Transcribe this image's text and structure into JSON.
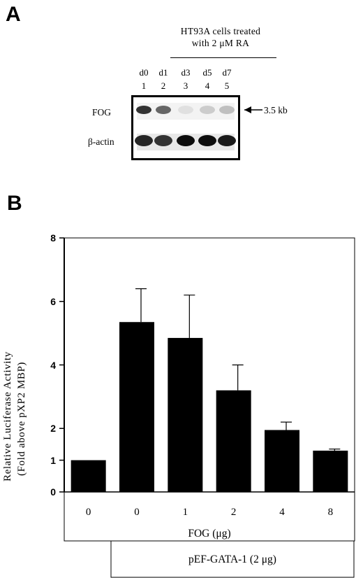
{
  "panel_a": {
    "letter": "A",
    "caption_line1": "HT93A cells treated",
    "caption_line2": "with 2 μM RA",
    "lanes": [
      {
        "day": "d0",
        "number": "1"
      },
      {
        "day": "d1",
        "number": "2"
      },
      {
        "day": "d3",
        "number": "3"
      },
      {
        "day": "d5",
        "number": "4"
      },
      {
        "day": "d7",
        "number": "5"
      }
    ],
    "rows": [
      {
        "label": "FOG",
        "band_intensity": [
          0.8,
          0.6,
          0.12,
          0.2,
          0.25
        ]
      },
      {
        "label": "β-actin",
        "band_intensity": [
          0.85,
          0.8,
          0.95,
          0.95,
          0.9
        ]
      }
    ],
    "size_marker": "3.5 kb"
  },
  "panel_b": {
    "letter": "B",
    "fog_label": "FOG (μg)",
    "gata_label": "pEF-GATA-1 (2 μg)"
  },
  "chart_data": {
    "type": "bar",
    "ylabel_line1": "Relative Luciferase Activity",
    "ylabel_line2": "(Fold above pXP2 MBP)",
    "xlabel": "FOG (μg)",
    "categories": [
      "0",
      "0",
      "1",
      "2",
      "4",
      "8"
    ],
    "values": [
      1.0,
      5.35,
      4.85,
      3.2,
      1.95,
      1.3
    ],
    "errors": [
      0.0,
      1.05,
      1.35,
      0.8,
      0.25,
      0.05
    ],
    "ylim": [
      0,
      8
    ],
    "yticks": [
      "0",
      "1",
      "2",
      "4",
      "6",
      "8"
    ],
    "ytick_values": [
      0,
      1,
      2,
      4,
      6,
      8
    ],
    "grid": false
  }
}
